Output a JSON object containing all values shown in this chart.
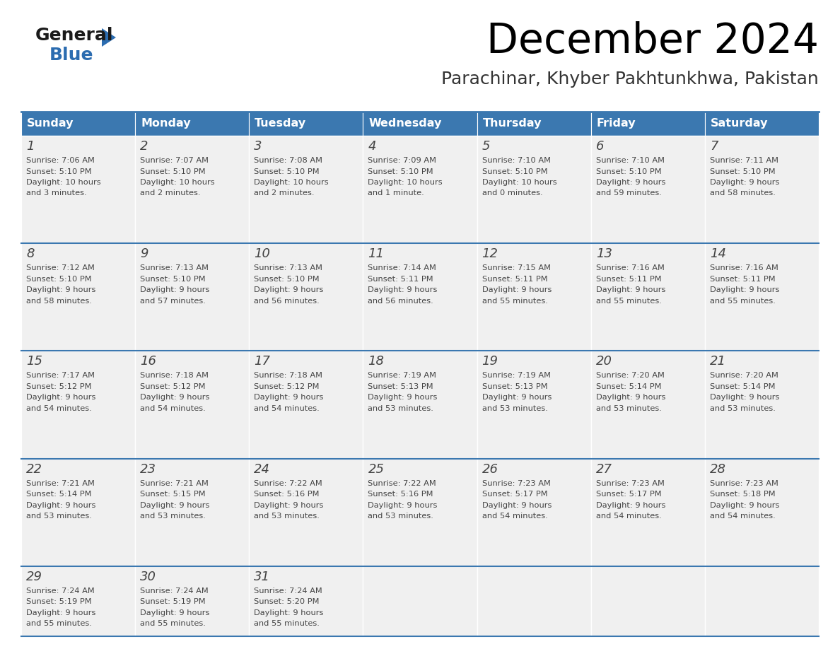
{
  "title": "December 2024",
  "subtitle": "Parachinar, Khyber Pakhtunkhwa, Pakistan",
  "header_color": "#3b78b0",
  "header_text_color": "#ffffff",
  "cell_bg_color": "#f0f0f0",
  "border_color": "#3b78b0",
  "text_color": "#444444",
  "days_of_week": [
    "Sunday",
    "Monday",
    "Tuesday",
    "Wednesday",
    "Thursday",
    "Friday",
    "Saturday"
  ],
  "weeks": [
    [
      {
        "day": 1,
        "sunrise": "7:06 AM",
        "sunset": "5:10 PM",
        "daylight_line1": "Daylight: 10 hours",
        "daylight_line2": "and 3 minutes."
      },
      {
        "day": 2,
        "sunrise": "7:07 AM",
        "sunset": "5:10 PM",
        "daylight_line1": "Daylight: 10 hours",
        "daylight_line2": "and 2 minutes."
      },
      {
        "day": 3,
        "sunrise": "7:08 AM",
        "sunset": "5:10 PM",
        "daylight_line1": "Daylight: 10 hours",
        "daylight_line2": "and 2 minutes."
      },
      {
        "day": 4,
        "sunrise": "7:09 AM",
        "sunset": "5:10 PM",
        "daylight_line1": "Daylight: 10 hours",
        "daylight_line2": "and 1 minute."
      },
      {
        "day": 5,
        "sunrise": "7:10 AM",
        "sunset": "5:10 PM",
        "daylight_line1": "Daylight: 10 hours",
        "daylight_line2": "and 0 minutes."
      },
      {
        "day": 6,
        "sunrise": "7:10 AM",
        "sunset": "5:10 PM",
        "daylight_line1": "Daylight: 9 hours",
        "daylight_line2": "and 59 minutes."
      },
      {
        "day": 7,
        "sunrise": "7:11 AM",
        "sunset": "5:10 PM",
        "daylight_line1": "Daylight: 9 hours",
        "daylight_line2": "and 58 minutes."
      }
    ],
    [
      {
        "day": 8,
        "sunrise": "7:12 AM",
        "sunset": "5:10 PM",
        "daylight_line1": "Daylight: 9 hours",
        "daylight_line2": "and 58 minutes."
      },
      {
        "day": 9,
        "sunrise": "7:13 AM",
        "sunset": "5:10 PM",
        "daylight_line1": "Daylight: 9 hours",
        "daylight_line2": "and 57 minutes."
      },
      {
        "day": 10,
        "sunrise": "7:13 AM",
        "sunset": "5:10 PM",
        "daylight_line1": "Daylight: 9 hours",
        "daylight_line2": "and 56 minutes."
      },
      {
        "day": 11,
        "sunrise": "7:14 AM",
        "sunset": "5:11 PM",
        "daylight_line1": "Daylight: 9 hours",
        "daylight_line2": "and 56 minutes."
      },
      {
        "day": 12,
        "sunrise": "7:15 AM",
        "sunset": "5:11 PM",
        "daylight_line1": "Daylight: 9 hours",
        "daylight_line2": "and 55 minutes."
      },
      {
        "day": 13,
        "sunrise": "7:16 AM",
        "sunset": "5:11 PM",
        "daylight_line1": "Daylight: 9 hours",
        "daylight_line2": "and 55 minutes."
      },
      {
        "day": 14,
        "sunrise": "7:16 AM",
        "sunset": "5:11 PM",
        "daylight_line1": "Daylight: 9 hours",
        "daylight_line2": "and 55 minutes."
      }
    ],
    [
      {
        "day": 15,
        "sunrise": "7:17 AM",
        "sunset": "5:12 PM",
        "daylight_line1": "Daylight: 9 hours",
        "daylight_line2": "and 54 minutes."
      },
      {
        "day": 16,
        "sunrise": "7:18 AM",
        "sunset": "5:12 PM",
        "daylight_line1": "Daylight: 9 hours",
        "daylight_line2": "and 54 minutes."
      },
      {
        "day": 17,
        "sunrise": "7:18 AM",
        "sunset": "5:12 PM",
        "daylight_line1": "Daylight: 9 hours",
        "daylight_line2": "and 54 minutes."
      },
      {
        "day": 18,
        "sunrise": "7:19 AM",
        "sunset": "5:13 PM",
        "daylight_line1": "Daylight: 9 hours",
        "daylight_line2": "and 53 minutes."
      },
      {
        "day": 19,
        "sunrise": "7:19 AM",
        "sunset": "5:13 PM",
        "daylight_line1": "Daylight: 9 hours",
        "daylight_line2": "and 53 minutes."
      },
      {
        "day": 20,
        "sunrise": "7:20 AM",
        "sunset": "5:14 PM",
        "daylight_line1": "Daylight: 9 hours",
        "daylight_line2": "and 53 minutes."
      },
      {
        "day": 21,
        "sunrise": "7:20 AM",
        "sunset": "5:14 PM",
        "daylight_line1": "Daylight: 9 hours",
        "daylight_line2": "and 53 minutes."
      }
    ],
    [
      {
        "day": 22,
        "sunrise": "7:21 AM",
        "sunset": "5:14 PM",
        "daylight_line1": "Daylight: 9 hours",
        "daylight_line2": "and 53 minutes."
      },
      {
        "day": 23,
        "sunrise": "7:21 AM",
        "sunset": "5:15 PM",
        "daylight_line1": "Daylight: 9 hours",
        "daylight_line2": "and 53 minutes."
      },
      {
        "day": 24,
        "sunrise": "7:22 AM",
        "sunset": "5:16 PM",
        "daylight_line1": "Daylight: 9 hours",
        "daylight_line2": "and 53 minutes."
      },
      {
        "day": 25,
        "sunrise": "7:22 AM",
        "sunset": "5:16 PM",
        "daylight_line1": "Daylight: 9 hours",
        "daylight_line2": "and 53 minutes."
      },
      {
        "day": 26,
        "sunrise": "7:23 AM",
        "sunset": "5:17 PM",
        "daylight_line1": "Daylight: 9 hours",
        "daylight_line2": "and 54 minutes."
      },
      {
        "day": 27,
        "sunrise": "7:23 AM",
        "sunset": "5:17 PM",
        "daylight_line1": "Daylight: 9 hours",
        "daylight_line2": "and 54 minutes."
      },
      {
        "day": 28,
        "sunrise": "7:23 AM",
        "sunset": "5:18 PM",
        "daylight_line1": "Daylight: 9 hours",
        "daylight_line2": "and 54 minutes."
      }
    ],
    [
      {
        "day": 29,
        "sunrise": "7:24 AM",
        "sunset": "5:19 PM",
        "daylight_line1": "Daylight: 9 hours",
        "daylight_line2": "and 55 minutes."
      },
      {
        "day": 30,
        "sunrise": "7:24 AM",
        "sunset": "5:19 PM",
        "daylight_line1": "Daylight: 9 hours",
        "daylight_line2": "and 55 minutes."
      },
      {
        "day": 31,
        "sunrise": "7:24 AM",
        "sunset": "5:20 PM",
        "daylight_line1": "Daylight: 9 hours",
        "daylight_line2": "and 55 minutes."
      },
      null,
      null,
      null,
      null
    ]
  ],
  "logo_general_color": "#1a1a1a",
  "logo_blue_color": "#2b6cb0",
  "logo_triangle_color": "#2b6cb0",
  "fig_width": 11.88,
  "fig_height": 9.18,
  "dpi": 100
}
